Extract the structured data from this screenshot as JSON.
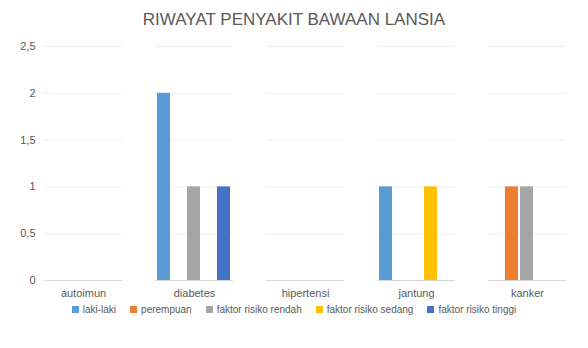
{
  "chart_data": {
    "type": "bar",
    "title": "RIWAYAT PENYAKIT BAWAAN LANSIA",
    "categories": [
      "autoimun",
      "diabetes",
      "hipertensi",
      "jantung",
      "kanker"
    ],
    "series": [
      {
        "name": "laki-laki",
        "color": "#5b9bd5",
        "values": [
          0,
          2,
          0,
          1,
          0
        ]
      },
      {
        "name": "perempuan",
        "color": "#ed7d31",
        "values": [
          0,
          0,
          0,
          0,
          1
        ]
      },
      {
        "name": "faktor risiko rendah",
        "color": "#a5a5a5",
        "values": [
          0,
          1,
          0,
          0,
          1
        ]
      },
      {
        "name": "faktor risiko sedang",
        "color": "#ffc000",
        "values": [
          0,
          0,
          0,
          1,
          0
        ]
      },
      {
        "name": "faktor risiko tinggi",
        "color": "#4472c4",
        "values": [
          0,
          1,
          0,
          0,
          0
        ]
      }
    ],
    "ylim": [
      0,
      2.5
    ],
    "yticks": [
      0,
      {
        "value": 0.5,
        "label": "0,5"
      },
      1,
      {
        "value": 1.5,
        "label": "1,5"
      },
      2,
      {
        "value": 2.5,
        "label": "2,5"
      }
    ],
    "grid": true,
    "legend": "bottom"
  }
}
